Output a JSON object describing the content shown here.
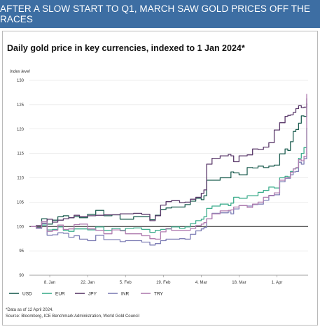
{
  "banner": {
    "title": "AFTER A SLOW START TO Q1, MARCH SAW GOLD PRICES OFF THE RACES"
  },
  "chart_data": {
    "type": "line",
    "title": "Daily gold price in key currencies, indexed to 1 Jan 2024*",
    "ylabel": "Index level",
    "xlabel": "",
    "ylim": [
      90,
      130
    ],
    "yticks": [
      90,
      95,
      100,
      105,
      110,
      115,
      120,
      125,
      130
    ],
    "xticks": [
      "8. Jan",
      "22. Jan",
      "5. Feb",
      "19. Feb",
      "4. Mar",
      "18. Mar",
      "1. Apr"
    ],
    "xtick_days": [
      7,
      21,
      35,
      49,
      63,
      77,
      91
    ],
    "x_start": "1 Jan 2024",
    "x_end": "12 Apr 2024",
    "x_end_day": 102,
    "grid": "horizontal",
    "legend_position": "bottom",
    "series": [
      {
        "name": "USD",
        "color": "#1f5f52",
        "x": [
          0,
          2,
          4,
          6,
          8,
          10,
          12,
          14,
          16,
          18,
          21,
          24,
          27,
          30,
          33,
          35,
          38,
          41,
          44,
          46,
          48,
          50,
          52,
          55,
          57,
          59,
          61,
          63,
          64,
          65,
          67,
          70,
          73,
          74,
          75,
          77,
          80,
          82,
          84,
          86,
          88,
          90,
          92,
          94,
          95,
          96,
          97,
          98,
          99,
          100,
          101,
          102
        ],
        "values": [
          100,
          99.8,
          101.6,
          100.5,
          101.3,
          102,
          102.2,
          101.8,
          102,
          101.8,
          102.5,
          103.3,
          102.2,
          102.4,
          101.5,
          101.5,
          102,
          102,
          101.4,
          102.3,
          103.5,
          103.8,
          104,
          104,
          104.5,
          105.2,
          105.8,
          105.5,
          106.3,
          109.5,
          109.5,
          110,
          110,
          111.2,
          111,
          110.6,
          112.1,
          112,
          112.4,
          112.1,
          112.4,
          112.6,
          114.9,
          115.9,
          115.6,
          117.4,
          119.5,
          119.9,
          121.2,
          122.7,
          122.6,
          125.3
        ]
      },
      {
        "name": "EUR",
        "color": "#3fae8e",
        "x": [
          0,
          2,
          4,
          6,
          8,
          10,
          12,
          14,
          16,
          18,
          21,
          24,
          27,
          30,
          33,
          35,
          38,
          41,
          44,
          46,
          48,
          50,
          52,
          55,
          57,
          59,
          61,
          63,
          64,
          65,
          67,
          70,
          73,
          74,
          75,
          77,
          80,
          82,
          84,
          86,
          88,
          90,
          92,
          94,
          95,
          96,
          97,
          98,
          99,
          100,
          101,
          102
        ],
        "values": [
          100,
          99.7,
          100.3,
          99.3,
          99.4,
          99.9,
          99.2,
          99,
          99.5,
          99.5,
          99.3,
          99.9,
          99.2,
          99.6,
          99.2,
          99.6,
          99.7,
          99.4,
          98.8,
          99.2,
          99.4,
          99.5,
          99.9,
          99.6,
          99.9,
          100.6,
          101.2,
          101.5,
          102,
          103.7,
          104.2,
          104.6,
          104.3,
          104.8,
          106,
          105.8,
          106.3,
          106.3,
          107,
          107.4,
          108.1,
          107.9,
          110,
          110.3,
          110.2,
          111.3,
          111.8,
          112,
          114,
          115,
          116.2,
          120.2
        ]
      },
      {
        "name": "JPY",
        "color": "#5b3a6b",
        "x": [
          0,
          2,
          4,
          6,
          8,
          10,
          12,
          14,
          16,
          18,
          21,
          24,
          27,
          30,
          33,
          35,
          38,
          41,
          44,
          46,
          48,
          50,
          52,
          55,
          57,
          59,
          61,
          63,
          64,
          65,
          67,
          70,
          73,
          74,
          75,
          77,
          80,
          82,
          84,
          86,
          88,
          90,
          92,
          94,
          95,
          96,
          97,
          98,
          99,
          100,
          101,
          102
        ],
        "values": [
          100,
          100.2,
          100.7,
          101.5,
          100.9,
          101.3,
          101.6,
          101.8,
          102.3,
          102.1,
          102.2,
          102.3,
          102.4,
          102.4,
          102.6,
          102.6,
          102.7,
          102.5,
          101.2,
          102.2,
          104.4,
          105.1,
          105.3,
          104.9,
          105,
          105.6,
          106,
          106.8,
          107.5,
          112.8,
          114,
          114.5,
          114.8,
          114.5,
          113.3,
          114.5,
          114.7,
          115.9,
          115.8,
          116.3,
          117.2,
          119.8,
          121.3,
          122.6,
          122.8,
          122.9,
          123.4,
          124.2,
          124.8,
          124.4,
          124.5,
          126.3
        ]
      },
      {
        "name": "INR",
        "color": "#7e7eb5",
        "x": [
          0,
          2,
          4,
          6,
          8,
          10,
          12,
          14,
          16,
          18,
          21,
          24,
          27,
          30,
          33,
          35,
          38,
          41,
          44,
          46,
          48,
          50,
          52,
          55,
          57,
          59,
          61,
          63,
          64,
          65,
          67,
          70,
          73,
          74,
          75,
          77,
          80,
          82,
          84,
          86,
          88,
          90,
          92,
          94,
          95,
          96,
          97,
          98,
          99,
          100,
          101,
          102
        ],
        "values": [
          100,
          99.6,
          100.6,
          98.2,
          98.3,
          98.7,
          98.6,
          97.8,
          98.1,
          97.4,
          97.1,
          98.2,
          97.3,
          97.3,
          96.9,
          97.1,
          97.1,
          96.8,
          96.2,
          96.5,
          97.1,
          97.4,
          97.4,
          97.5,
          97.4,
          98.4,
          99.1,
          99.5,
          99.8,
          101.6,
          102.7,
          102.8,
          103,
          102.6,
          103.6,
          104.3,
          104.2,
          104.5,
          104.6,
          105.4,
          106.3,
          106.5,
          109.2,
          109.9,
          109.9,
          110.6,
          111.2,
          111.3,
          113.2,
          112.8,
          113.9,
          116.2
        ]
      },
      {
        "name": "TRY",
        "color": "#b07db0",
        "x": [
          0,
          2,
          4,
          6,
          8,
          10,
          12,
          14,
          16,
          18,
          21,
          24,
          27,
          30,
          33,
          35,
          38,
          41,
          44,
          46,
          48,
          50,
          52,
          55,
          57,
          59,
          61,
          63,
          64,
          65,
          67,
          70,
          73,
          74,
          75,
          77,
          80,
          82,
          84,
          86,
          88,
          90,
          92,
          94,
          95,
          96,
          97,
          98,
          99,
          100,
          101,
          102
        ],
        "values": [
          100,
          99.7,
          101,
          99,
          99.2,
          100.3,
          99.4,
          99.5,
          100.4,
          100.5,
          99.5,
          99.2,
          98.5,
          99.3,
          99.1,
          98.5,
          98.5,
          98.1,
          97.5,
          97.4,
          98.9,
          99.6,
          99.2,
          99.2,
          99.2,
          99.6,
          100.2,
          100.5,
          100.8,
          101.6,
          102.6,
          103.2,
          103.3,
          103.4,
          104,
          104.3,
          103.9,
          104.6,
          105,
          106,
          106.4,
          106.9,
          109.5,
          110,
          110,
          111.1,
          111.8,
          112.1,
          113.7,
          113.5,
          114.4,
          127.2
        ]
      }
    ]
  },
  "footnote": {
    "line1": "*Data as of 12 April 2024.",
    "line2": "Source: Bloomberg, ICE Benchmark Administration, World Gold Council"
  }
}
